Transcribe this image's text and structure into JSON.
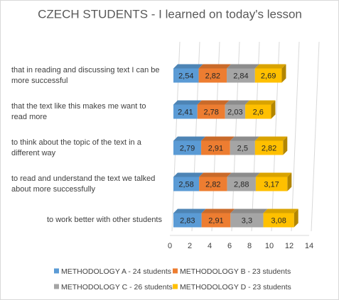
{
  "chart_data": {
    "type": "stacked-bar-horizontal",
    "title": "CZECH STUDENTS - I learned on today's lesson",
    "categories": [
      "that in reading and discussing text I can be more successful",
      "that the text like this makes me want to read more",
      "to think about the topic of the text in a different way",
      "to read and understand the text we talked about more successfully",
      "to work better with other students"
    ],
    "series": [
      {
        "name": "METHODOLOGY A - 24 students",
        "color": "#5b9bd5",
        "values": [
          2.54,
          2.41,
          2.79,
          2.58,
          2.83
        ],
        "value_labels": [
          "2,54",
          "2,41",
          "2,79",
          "2,58",
          "2,83"
        ]
      },
      {
        "name": "METHODOLOGY B - 23 students",
        "color": "#ed7d31",
        "values": [
          2.82,
          2.78,
          2.91,
          2.82,
          2.91
        ],
        "value_labels": [
          "2,82",
          "2,78",
          "2,91",
          "2,82",
          "2,91"
        ]
      },
      {
        "name": "METHODOLOGY C - 26 students",
        "color": "#a5a5a5",
        "values": [
          2.84,
          2.03,
          2.5,
          2.88,
          3.3
        ],
        "value_labels": [
          "2,84",
          "2,03",
          "2,5",
          "2,88",
          "3,3"
        ]
      },
      {
        "name": "METHODOLOGY D - 23 students",
        "color": "#ffc000",
        "values": [
          2.69,
          2.6,
          2.82,
          3.17,
          3.08
        ],
        "value_labels": [
          "2,69",
          "2,6",
          "2,82",
          "3,17",
          "3,08"
        ]
      }
    ],
    "xlim": [
      0,
      14
    ],
    "xticks": [
      0,
      2,
      4,
      6,
      8,
      10,
      12,
      14
    ],
    "grid": true,
    "legend": "bottom"
  }
}
